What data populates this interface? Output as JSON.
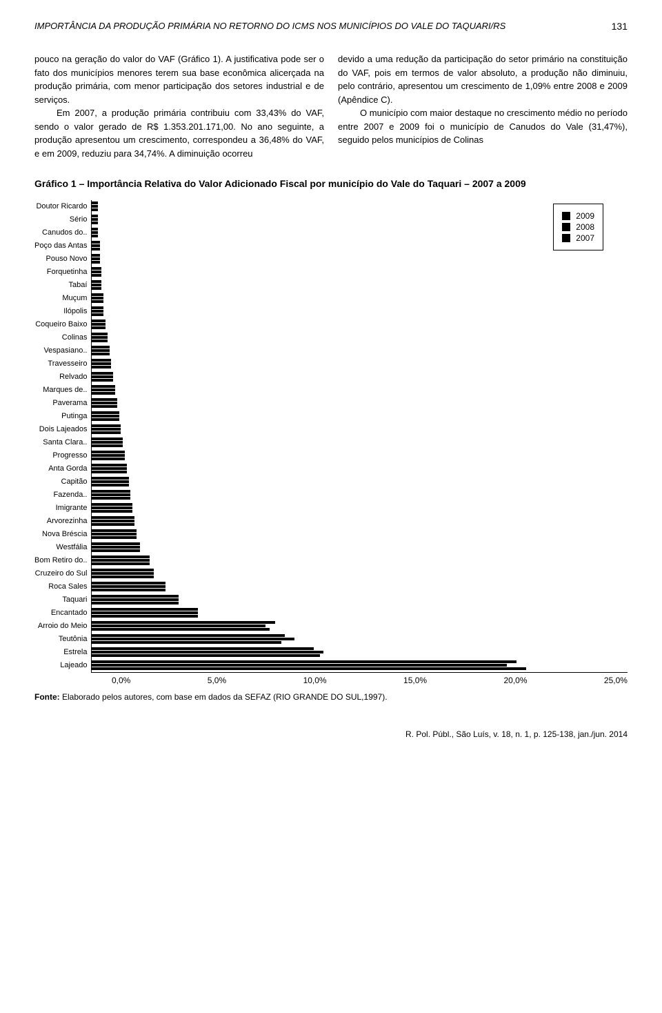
{
  "header": {
    "title": "IMPORTÂNCIA DA PRODUÇÃO PRIMÁRIA NO RETORNO DO ICMS NOS MUNICÍPIOS DO VALE DO TAQUARI/RS",
    "page_num": "131"
  },
  "left_col": {
    "p1": "pouco na geração do valor do VAF (Gráfico 1). A justificativa pode ser o fato dos municípios menores terem sua base econômica alicerçada na produção primária, com menor participação dos setores industrial e de serviços.",
    "p2": "Em 2007, a produção primária contribuiu com 33,43% do VAF, sendo o valor gerado de R$ 1.353.201.171,00. No ano seguinte, a produção apresentou um crescimento, correspondeu a 36,48% do VAF, e em 2009, reduziu para 34,74%. A diminuição ocorreu"
  },
  "right_col": {
    "p1": "devido a uma redução da participação do setor primário na constituição do VAF, pois em termos de valor absoluto, a produção não diminuiu, pelo contrário, apresentou um crescimento de 1,09% entre 2008 e 2009 (Apêndice C).",
    "p2": "O município com maior destaque no crescimento médio no período entre 2007 e 2009 foi o município de Canudos do Vale (31,47%), seguido pelos municípios de Colinas"
  },
  "chart": {
    "title": "Gráfico 1 – Importância Relativa do Valor Adicionado Fiscal por município do Vale do Taquari – 2007 a 2009",
    "type": "horizontal_grouped_bar",
    "legend": [
      "2009",
      "2008",
      "2007"
    ],
    "legend_colors": [
      "#000000",
      "#000000",
      "#000000"
    ],
    "xlim": [
      0,
      25
    ],
    "xticks": [
      "0,0%",
      "5,0%",
      "10,0%",
      "15,0%",
      "20,0%",
      "25,0%"
    ],
    "categories": [
      "Doutor Ricardo",
      "Sério",
      "Canudos do..",
      "Poço das Antas",
      "Pouso Novo",
      "Forquetinha",
      "Tabaí",
      "Muçum",
      "Ilópolis",
      "Coqueiro Baixo",
      "Colinas",
      "Vespasiano..",
      "Travesseiro",
      "Relvado",
      "Marques de..",
      "Paverama",
      "Putinga",
      "Dois Lajeados",
      "Santa Clara..",
      "Progresso",
      "Anta Gorda",
      "Capitão",
      "Fazenda..",
      "Imigrante",
      "Arvorezinha",
      "Nova Bréscia",
      "Westfália",
      "Bom Retiro do..",
      "Cruzeiro do Sul",
      "Roca Sales",
      "Taquari",
      "Encantado",
      "Arroio do Meio",
      "Teutônia",
      "Estrela",
      "Lajeado"
    ],
    "values_2009": [
      0.3,
      0.3,
      0.3,
      0.4,
      0.4,
      0.5,
      0.5,
      0.6,
      0.6,
      0.7,
      0.8,
      0.9,
      1.0,
      1.1,
      1.2,
      1.3,
      1.4,
      1.5,
      1.6,
      1.7,
      1.8,
      1.9,
      2.0,
      2.1,
      2.2,
      2.3,
      2.5,
      3.0,
      3.2,
      3.8,
      4.5,
      5.5,
      9.5,
      10.0,
      11.5,
      22.0
    ],
    "values_2008": [
      0.3,
      0.3,
      0.3,
      0.4,
      0.4,
      0.5,
      0.5,
      0.6,
      0.6,
      0.7,
      0.8,
      0.9,
      1.0,
      1.1,
      1.2,
      1.3,
      1.4,
      1.5,
      1.6,
      1.7,
      1.8,
      1.9,
      2.0,
      2.1,
      2.2,
      2.3,
      2.5,
      3.0,
      3.2,
      3.8,
      4.5,
      5.5,
      9.0,
      10.5,
      12.0,
      21.5
    ],
    "values_2007": [
      0.3,
      0.3,
      0.3,
      0.4,
      0.4,
      0.5,
      0.5,
      0.6,
      0.6,
      0.7,
      0.8,
      0.9,
      1.0,
      1.1,
      1.2,
      1.3,
      1.4,
      1.5,
      1.6,
      1.7,
      1.8,
      1.9,
      2.0,
      2.1,
      2.2,
      2.3,
      2.5,
      3.0,
      3.2,
      3.8,
      4.5,
      5.5,
      9.2,
      9.8,
      11.8,
      22.5
    ],
    "bar_color": "#000000",
    "background_color": "#ffffff",
    "label_fontsize": 11
  },
  "source": {
    "label": "Fonte:",
    "text": " Elaborado pelos autores, com base em dados da SEFAZ (RIO GRANDE DO SUL,1997)."
  },
  "footer": {
    "text": "R. Pol. Públ., São Luís, v. 18, n. 1, p. 125-138, jan./jun. 2014"
  }
}
